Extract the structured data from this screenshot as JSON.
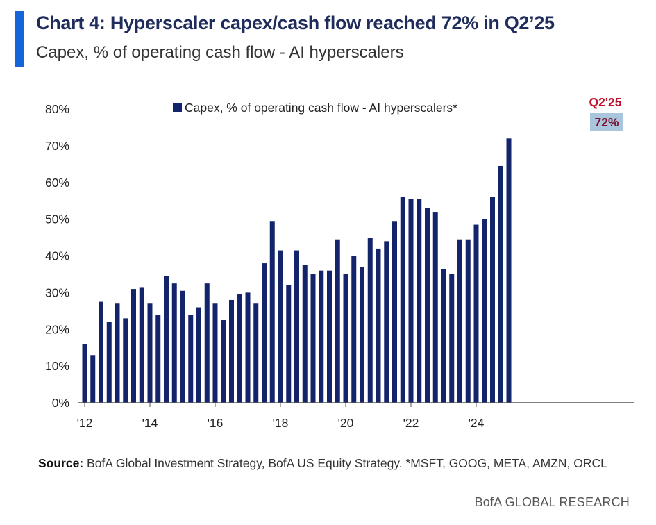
{
  "header": {
    "title": "Chart 4: Hyperscaler capex/cash flow reached 72% in Q2’25",
    "subtitle": "Capex, % of operating cash flow - AI hyperscalers"
  },
  "colors": {
    "accent": "#1565d8",
    "bar": "#13246b",
    "highlight_text": "#c0112a",
    "highlight_box": "#a9c6dd"
  },
  "chart_data": {
    "type": "bar",
    "title": "Chart 4: Hyperscaler capex/cash flow reached 72% in Q2’25",
    "subtitle": "Capex, % of operating cash flow - AI hyperscalers",
    "series": [
      {
        "name": "Capex, % of operating cash flow - AI hyperscalers*",
        "values": [
          16,
          13,
          27.5,
          22,
          27,
          23,
          31,
          31.5,
          27,
          24,
          34.5,
          32.5,
          30.5,
          24,
          26,
          32.5,
          27,
          22.5,
          28,
          29.5,
          30,
          27,
          38,
          49.5,
          41.5,
          32,
          41.5,
          37.5,
          35,
          36,
          36,
          44.5,
          35,
          40,
          37,
          45,
          42,
          44,
          49.5,
          56,
          55.5,
          55.5,
          53,
          52,
          36.5,
          35,
          44.5,
          44.5,
          48.5,
          50,
          56,
          64.5,
          72
        ]
      }
    ],
    "x_tick_labels": [
      "'12",
      "'14",
      "'16",
      "'18",
      "'20",
      "'22",
      "'24"
    ],
    "y_tick_labels": [
      "0%",
      "10%",
      "20%",
      "30%",
      "40%",
      "50%",
      "60%",
      "70%",
      "80%"
    ],
    "ylim": [
      0,
      80
    ],
    "legend": "Capex, % of operating cash flow - AI hyperscalers*",
    "legend_position": "top-center",
    "annotation": {
      "label": "Q2'25",
      "value": "72%"
    }
  },
  "footer": {
    "source_label": "Source:",
    "source_text": "BofA Global Investment Strategy, BofA US Equity Strategy. *MSFT, GOOG, META, AMZN, ORCL",
    "brand": "BofA GLOBAL RESEARCH"
  }
}
